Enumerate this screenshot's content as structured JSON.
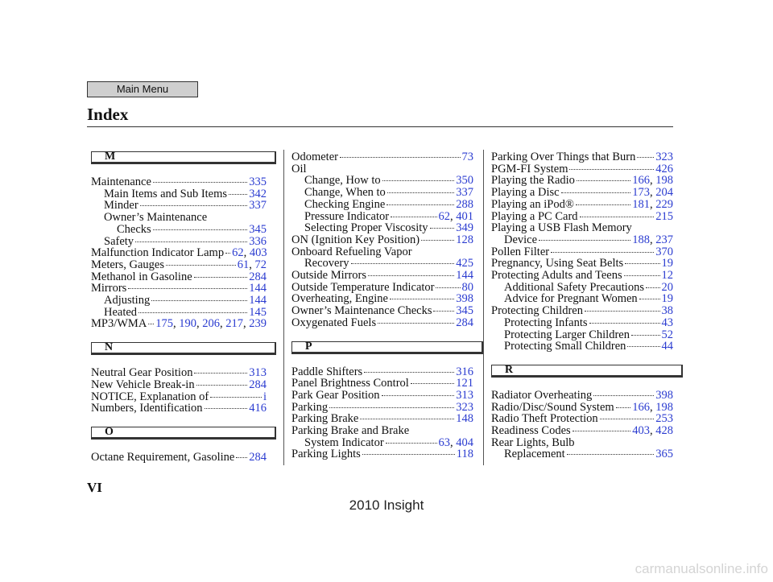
{
  "header": {
    "button": "Main Menu",
    "title": "Index"
  },
  "columns": [
    {
      "blocks": [
        {
          "letter": "M",
          "entries": [
            {
              "lines": [
                "Maintenance"
              ],
              "pages": [
                335
              ],
              "subentries": [
                {
                  "lines": [
                    "Main Items and Sub Items"
                  ],
                  "pages": [
                    342
                  ]
                },
                {
                  "lines": [
                    "Minder"
                  ],
                  "pages": [
                    337
                  ]
                },
                {
                  "lines": [
                    "Owner’s Maintenance",
                    "Checks"
                  ],
                  "pages": [
                    345
                  ]
                },
                {
                  "lines": [
                    "Safety"
                  ],
                  "pages": [
                    336
                  ]
                }
              ]
            },
            {
              "lines": [
                "Malfunction Indicator Lamp"
              ],
              "pages": [
                62,
                403
              ]
            },
            {
              "lines": [
                "Meters, Gauges"
              ],
              "pages": [
                61,
                72
              ]
            },
            {
              "lines": [
                "Methanol in Gasoline"
              ],
              "pages": [
                284
              ]
            },
            {
              "lines": [
                "Mirrors"
              ],
              "pages": [
                144
              ],
              "subentries": [
                {
                  "lines": [
                    "Adjusting"
                  ],
                  "pages": [
                    144
                  ]
                },
                {
                  "lines": [
                    "Heated"
                  ],
                  "pages": [
                    145
                  ]
                }
              ]
            },
            {
              "lines": [
                "MP3/WMA"
              ],
              "pages": [
                175,
                190,
                206,
                217,
                239
              ]
            }
          ]
        },
        {
          "letter": "N",
          "entries": [
            {
              "lines": [
                "Neutral Gear Position"
              ],
              "pages": [
                313
              ]
            },
            {
              "lines": [
                "New Vehicle Break-in"
              ],
              "pages": [
                284
              ]
            },
            {
              "lines": [
                "NOTICE, Explanation of"
              ],
              "pages": [
                "i"
              ]
            },
            {
              "lines": [
                "Numbers, Identification"
              ],
              "pages": [
                416
              ]
            }
          ]
        },
        {
          "letter": "O",
          "entries": [
            {
              "lines": [
                "Octane Requirement, Gasoline"
              ],
              "pages": [
                284
              ]
            }
          ]
        }
      ]
    },
    {
      "blocks": [
        {
          "entries": [
            {
              "lines": [
                "Odometer"
              ],
              "pages": [
                73
              ]
            },
            {
              "lines": [
                "Oil"
              ],
              "subentries": [
                {
                  "lines": [
                    "Change, How to"
                  ],
                  "pages": [
                    350
                  ]
                },
                {
                  "lines": [
                    "Change, When to"
                  ],
                  "pages": [
                    337
                  ]
                },
                {
                  "lines": [
                    "Checking Engine"
                  ],
                  "pages": [
                    288
                  ]
                },
                {
                  "lines": [
                    "Pressure Indicator"
                  ],
                  "pages": [
                    62,
                    401
                  ]
                },
                {
                  "lines": [
                    "Selecting Proper Viscosity"
                  ],
                  "pages": [
                    349
                  ]
                }
              ]
            },
            {
              "lines": [
                "ON (Ignition Key Position)"
              ],
              "pages": [
                128
              ]
            },
            {
              "lines": [
                "Onboard Refueling Vapor",
                "Recovery"
              ],
              "pages": [
                425
              ]
            },
            {
              "lines": [
                "Outside Mirrors"
              ],
              "pages": [
                144
              ]
            },
            {
              "lines": [
                "Outside Temperature Indicator"
              ],
              "pages": [
                80
              ]
            },
            {
              "lines": [
                "Overheating, Engine"
              ],
              "pages": [
                398
              ]
            },
            {
              "lines": [
                "Owner’s Maintenance Checks"
              ],
              "pages": [
                345
              ]
            },
            {
              "lines": [
                "Oxygenated Fuels"
              ],
              "pages": [
                284
              ]
            }
          ]
        },
        {
          "letter": "P",
          "entries": [
            {
              "lines": [
                "Paddle Shifters"
              ],
              "pages": [
                316
              ]
            },
            {
              "lines": [
                "Panel Brightness Control"
              ],
              "pages": [
                121
              ]
            },
            {
              "lines": [
                "Park Gear Position"
              ],
              "pages": [
                313
              ]
            },
            {
              "lines": [
                "Parking"
              ],
              "pages": [
                323
              ]
            },
            {
              "lines": [
                "Parking Brake"
              ],
              "pages": [
                148
              ]
            },
            {
              "lines": [
                "Parking Brake and Brake",
                "System Indicator"
              ],
              "pages": [
                63,
                404
              ]
            },
            {
              "lines": [
                "Parking Lights"
              ],
              "pages": [
                118
              ]
            }
          ]
        }
      ]
    },
    {
      "blocks": [
        {
          "entries": [
            {
              "lines": [
                "Parking Over Things that Burn"
              ],
              "pages": [
                323
              ]
            },
            {
              "lines": [
                "PGM-FI System"
              ],
              "pages": [
                426
              ]
            },
            {
              "lines": [
                "Playing the Radio"
              ],
              "pages": [
                166,
                198
              ]
            },
            {
              "lines": [
                "Playing a Disc"
              ],
              "pages": [
                173,
                204
              ]
            },
            {
              "lines": [
                "Playing an iPod®"
              ],
              "pages": [
                181,
                229
              ]
            },
            {
              "lines": [
                "Playing a PC Card"
              ],
              "pages": [
                215
              ]
            },
            {
              "lines": [
                "Playing a USB Flash Memory",
                "Device"
              ],
              "pages": [
                188,
                237
              ]
            },
            {
              "lines": [
                "Pollen Filter"
              ],
              "pages": [
                370
              ]
            },
            {
              "lines": [
                "Pregnancy, Using Seat Belts"
              ],
              "pages": [
                19
              ]
            },
            {
              "lines": [
                "Protecting Adults and Teens"
              ],
              "pages": [
                12
              ],
              "subentries": [
                {
                  "lines": [
                    "Additional Safety Precautions"
                  ],
                  "pages": [
                    20
                  ]
                },
                {
                  "lines": [
                    "Advice for Pregnant Women"
                  ],
                  "pages": [
                    19
                  ]
                }
              ]
            },
            {
              "lines": [
                "Protecting Children"
              ],
              "pages": [
                38
              ],
              "subentries": [
                {
                  "lines": [
                    "Protecting Infants"
                  ],
                  "pages": [
                    43
                  ]
                },
                {
                  "lines": [
                    "Protecting Larger Children"
                  ],
                  "pages": [
                    52
                  ]
                },
                {
                  "lines": [
                    "Protecting Small Children"
                  ],
                  "pages": [
                    44
                  ]
                }
              ]
            }
          ]
        },
        {
          "letter": "R",
          "entries": [
            {
              "lines": [
                "Radiator Overheating"
              ],
              "pages": [
                398
              ]
            },
            {
              "lines": [
                "Radio/Disc/Sound System"
              ],
              "pages": [
                166,
                198
              ]
            },
            {
              "lines": [
                "Radio Theft Protection"
              ],
              "pages": [
                253
              ]
            },
            {
              "lines": [
                "Readiness Codes"
              ],
              "pages": [
                403,
                428
              ]
            },
            {
              "lines": [
                "Rear Lights, Bulb",
                "Replacement"
              ],
              "pages": [
                365
              ]
            }
          ]
        }
      ]
    }
  ],
  "footer": {
    "page": "VI",
    "model": "2010 Insight",
    "watermark": "carmanualsonline.info"
  }
}
